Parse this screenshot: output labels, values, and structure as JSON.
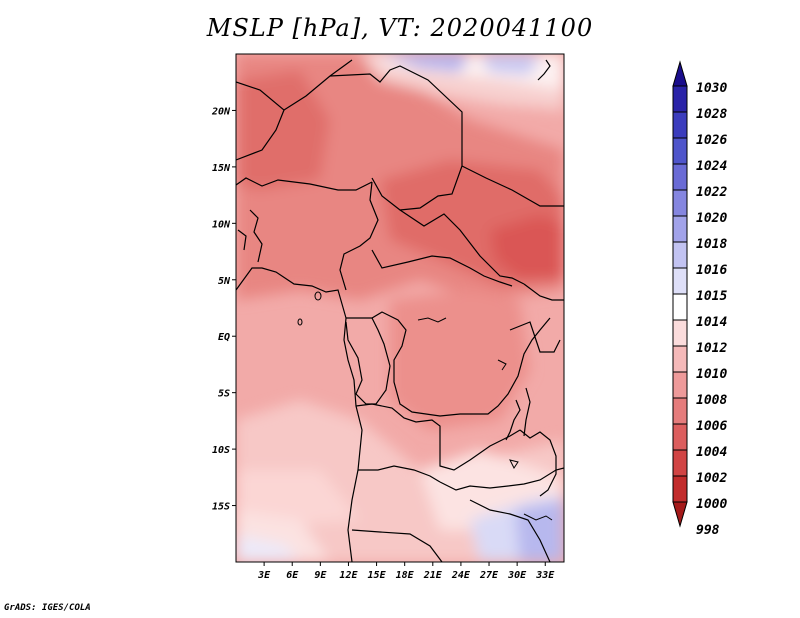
{
  "title": "MSLP [hPa], VT: 2020041100",
  "credit": "GrADS: IGES/COLA",
  "chart_data": {
    "type": "heatmap",
    "variable": "MSLP",
    "units": "hPa",
    "valid_time": "2020041100",
    "lon_range": [
      0,
      35
    ],
    "lat_range": [
      -20,
      25
    ],
    "x_ticks": [
      {
        "value": 3,
        "label": "3E"
      },
      {
        "value": 6,
        "label": "6E"
      },
      {
        "value": 9,
        "label": "9E"
      },
      {
        "value": 12,
        "label": "12E"
      },
      {
        "value": 15,
        "label": "15E"
      },
      {
        "value": 18,
        "label": "18E"
      },
      {
        "value": 21,
        "label": "21E"
      },
      {
        "value": 24,
        "label": "24E"
      },
      {
        "value": 27,
        "label": "27E"
      },
      {
        "value": 30,
        "label": "30E"
      },
      {
        "value": 33,
        "label": "33E"
      }
    ],
    "y_ticks": [
      {
        "value": 20,
        "label": "20N"
      },
      {
        "value": 15,
        "label": "15N"
      },
      {
        "value": 10,
        "label": "10N"
      },
      {
        "value": 5,
        "label": "5N"
      },
      {
        "value": 0,
        "label": "EQ"
      },
      {
        "value": -5,
        "label": "5S"
      },
      {
        "value": -10,
        "label": "10S"
      },
      {
        "value": -15,
        "label": "15S"
      }
    ],
    "colorbar": {
      "levels": [
        "1030",
        "1028",
        "1026",
        "1024",
        "1022",
        "1020",
        "1018",
        "1016",
        "1015",
        "1014",
        "1012",
        "1010",
        "1008",
        "1006",
        "1004",
        "1002",
        "1000",
        "998"
      ],
      "colors": [
        "#1a0d8c",
        "#2a23a8",
        "#3b3cbd",
        "#4f55cb",
        "#6a6bd6",
        "#8586e0",
        "#a2a3ea",
        "#c2c3f2",
        "#dedff8",
        "#ffffff",
        "#fbdcdc",
        "#f5b9b9",
        "#ee9a9a",
        "#e57c7c",
        "#dc5e5e",
        "#d14444",
        "#c22c2c",
        "#a51a1a"
      ]
    }
  }
}
